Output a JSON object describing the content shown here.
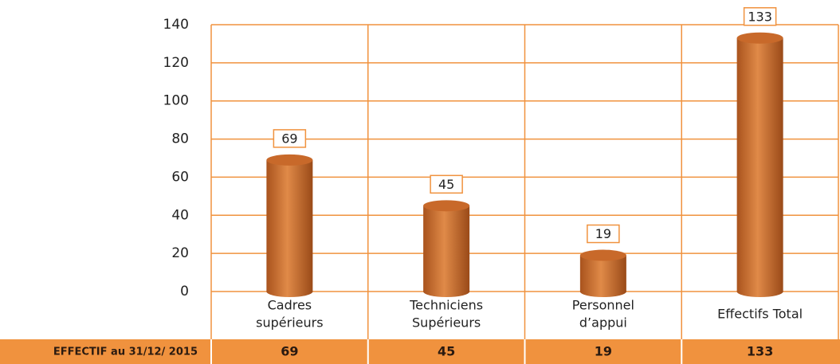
{
  "chart_data": {
    "type": "cylinder",
    "categories": [
      [
        "Cadres",
        "supérieurs"
      ],
      [
        "Techniciens",
        "Supérieurs"
      ],
      [
        "Personnel",
        "d’appui"
      ],
      [
        "Effectifs Total"
      ]
    ],
    "values": [
      69,
      45,
      19,
      133
    ],
    "color": "#c8692a",
    "grid_color": "#f0923e",
    "ylim": [
      0,
      140
    ],
    "yticks": [
      0,
      20,
      40,
      60,
      80,
      100,
      120,
      140
    ],
    "grid": true
  },
  "table": {
    "row_label": "EFFECTIF au 31/12/ 2015",
    "values": [
      69,
      45,
      19,
      133
    ]
  }
}
